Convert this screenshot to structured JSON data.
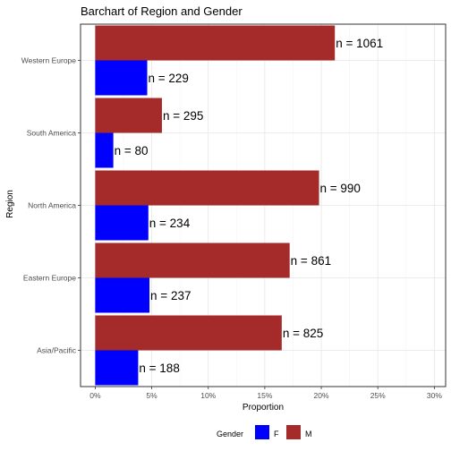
{
  "chart_data": {
    "type": "bar",
    "orientation": "horizontal",
    "title": "Barchart of Region and Gender",
    "xlabel": "Proportion",
    "ylabel": "Region",
    "categories": [
      "Western Europe",
      "South America",
      "North America",
      "Eastern Europe",
      "Asia/Pacific"
    ],
    "series": [
      {
        "name": "M",
        "color": "#a52a2a",
        "values": [
          0.212,
          0.059,
          0.198,
          0.172,
          0.165
        ],
        "labels": [
          "n = 1061",
          "n = 295",
          "n = 990",
          "n = 861",
          "n = 825"
        ]
      },
      {
        "name": "F",
        "color": "#0000ff",
        "values": [
          0.046,
          0.016,
          0.047,
          0.048,
          0.038
        ],
        "labels": [
          "n = 229",
          "n = 80",
          "n = 234",
          "n = 237",
          "n = 188"
        ]
      }
    ],
    "xlim": [
      -0.013,
      0.31
    ],
    "xticks": [
      0,
      0.05,
      0.1,
      0.15,
      0.2,
      0.25,
      0.3
    ],
    "xtick_labels": [
      "0%",
      "5%",
      "10%",
      "15%",
      "20%",
      "25%",
      "30%"
    ],
    "grid": true,
    "legend": {
      "title": "Gender",
      "position": "bottom",
      "order": [
        "F",
        "M"
      ]
    }
  }
}
